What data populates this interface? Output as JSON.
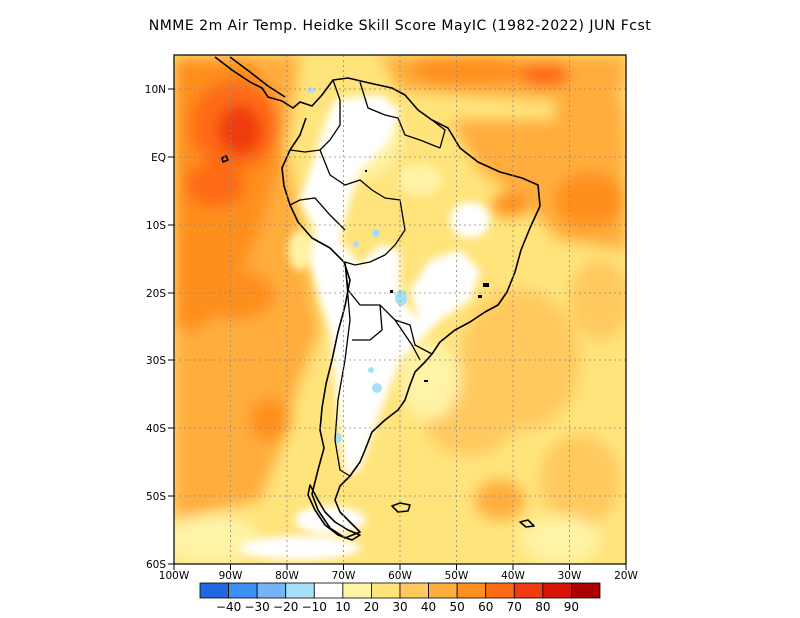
{
  "title": "NMME  2m Air Temp. Heidke Skill Score MayIC (1982-2022) JUN Fcst",
  "map": {
    "lat_labels": [
      "10N",
      "EQ",
      "10S",
      "20S",
      "30S",
      "40S",
      "50S",
      "60S"
    ],
    "lon_labels": [
      "100W",
      "90W",
      "80W",
      "70W",
      "60W",
      "50W",
      "40W",
      "30W",
      "20W"
    ],
    "lon_range": [
      -100,
      -20
    ],
    "lat_range": [
      -60,
      15
    ],
    "grid": "dotted"
  },
  "colorbar": {
    "colors": [
      "#2167e0",
      "#3c8ff4",
      "#75b5f7",
      "#a6e0f8",
      "#ffffff",
      "#fff3a6",
      "#ffe47c",
      "#ffc95e",
      "#ffad3c",
      "#ff8f1e",
      "#ff6a14",
      "#f03a0f",
      "#d61508",
      "#ad0000"
    ],
    "labels": [
      "-40",
      "-30",
      "-20",
      "-10",
      "10",
      "20",
      "30",
      "40",
      "50",
      "60",
      "70",
      "80",
      "90"
    ]
  },
  "chart_data": {
    "type": "heatmap",
    "variable": "2m Air Temp. Heidke Skill Score",
    "x_range": [
      -100,
      -20
    ],
    "y_range": [
      -60,
      15
    ],
    "color_levels": [
      -40,
      -30,
      -20,
      -10,
      10,
      20,
      30,
      40,
      50,
      60,
      70,
      80,
      90
    ],
    "regions": [
      {
        "region": "Eastern Pacific 10N-5S, 95W-85W",
        "value": 70
      },
      {
        "region": "Eastern Pacific EQ-15S",
        "value": 60
      },
      {
        "region": "Eastern Pacific 20S-40S",
        "value": 50
      },
      {
        "region": "Caribbean / north of 10N",
        "value": 50
      },
      {
        "region": "Equatorial Atlantic",
        "value": 50
      },
      {
        "region": "South Atlantic 20S-45S",
        "value": 30
      },
      {
        "region": "Amazon / central South America",
        "value": 10
      },
      {
        "region": "Argentina / Patagonia",
        "value": 10
      },
      {
        "region": "Southern Ocean near 55S-60S",
        "value": 10
      }
    ]
  }
}
